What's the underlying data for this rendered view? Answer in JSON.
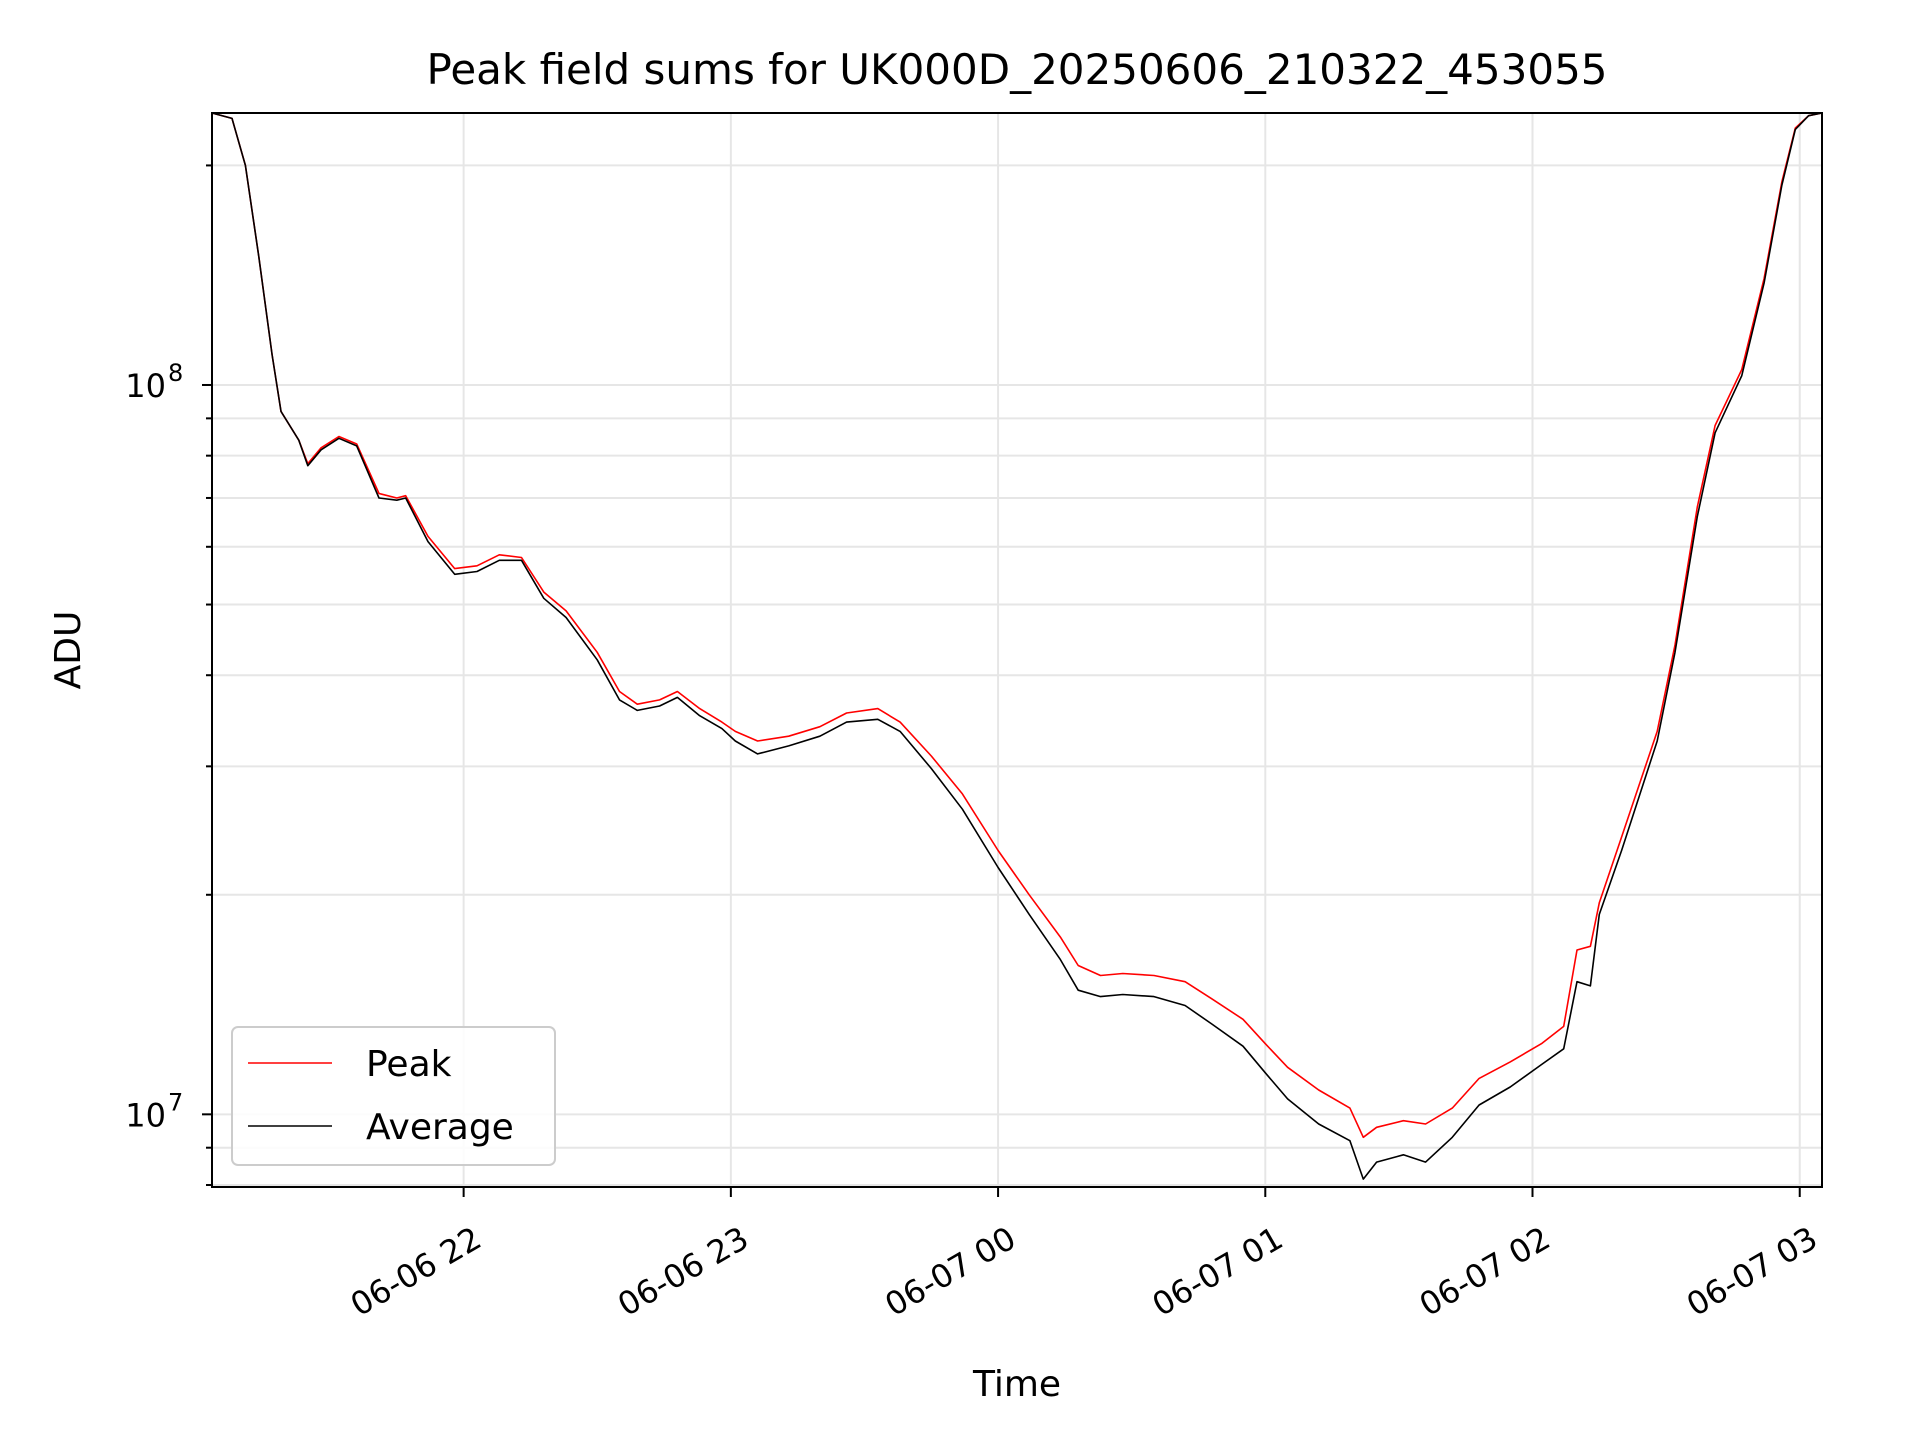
{
  "chart_data": {
    "type": "line",
    "title": "Peak field sums for UK000D_20250606_210322_453055",
    "xlabel": "Time",
    "ylabel": "ADU",
    "yscale": "log",
    "ylim": [
      7950000,
      236000000
    ],
    "xlim": [
      "2025-06-06 21:03:30",
      "2025-06-07 03:05:00"
    ],
    "grid": true,
    "legend_position": "lower-left",
    "x_ticks": [
      {
        "value": "2025-06-06 22:00",
        "label": "06-06 22"
      },
      {
        "value": "2025-06-06 23:00",
        "label": "06-06 23"
      },
      {
        "value": "2025-06-07 00:00",
        "label": "06-07 00"
      },
      {
        "value": "2025-06-07 01:00",
        "label": "06-07 01"
      },
      {
        "value": "2025-06-07 02:00",
        "label": "06-07 02"
      },
      {
        "value": "2025-06-07 03:00",
        "label": "06-07 03"
      }
    ],
    "y_ticks": [
      {
        "value": 10000000,
        "base": "10",
        "exp": "7"
      },
      {
        "value": 100000000,
        "base": "10",
        "exp": "8"
      }
    ],
    "series": [
      {
        "name": "Peak",
        "color": "#ff0000",
        "points": [
          [
            "2025-06-06 21:03:30",
            236000000
          ],
          [
            "2025-06-06 21:08",
            232000000
          ],
          [
            "2025-06-06 21:11",
            200000000
          ],
          [
            "2025-06-06 21:14",
            150000000
          ],
          [
            "2025-06-06 21:17",
            110000000
          ],
          [
            "2025-06-06 21:19",
            92000000
          ],
          [
            "2025-06-06 21:23",
            84000000
          ],
          [
            "2025-06-06 21:25",
            78000000
          ],
          [
            "2025-06-06 21:28",
            82000000
          ],
          [
            "2025-06-06 21:32",
            85000000
          ],
          [
            "2025-06-06 21:36",
            83000000
          ],
          [
            "2025-06-06 21:41",
            71000000
          ],
          [
            "2025-06-06 21:45",
            70000000
          ],
          [
            "2025-06-06 21:47",
            70500000
          ],
          [
            "2025-06-06 21:52",
            62000000
          ],
          [
            "2025-06-06 21:58",
            56000000
          ],
          [
            "2025-06-06 22:03",
            56500000
          ],
          [
            "2025-06-06 22:08",
            58500000
          ],
          [
            "2025-06-06 22:13",
            58000000
          ],
          [
            "2025-06-06 22:18",
            52000000
          ],
          [
            "2025-06-06 22:23",
            49000000
          ],
          [
            "2025-06-06 22:30",
            43000000
          ],
          [
            "2025-06-06 22:35",
            38000000
          ],
          [
            "2025-06-06 22:39",
            36500000
          ],
          [
            "2025-06-06 22:44",
            37000000
          ],
          [
            "2025-06-06 22:48",
            38000000
          ],
          [
            "2025-06-06 22:53",
            36000000
          ],
          [
            "2025-06-06 22:58",
            34500000
          ],
          [
            "2025-06-06 23:01",
            33500000
          ],
          [
            "2025-06-06 23:06",
            32500000
          ],
          [
            "2025-06-06 23:13",
            33000000
          ],
          [
            "2025-06-06 23:20",
            34000000
          ],
          [
            "2025-06-06 23:26",
            35500000
          ],
          [
            "2025-06-06 23:33",
            36000000
          ],
          [
            "2025-06-06 23:38",
            34500000
          ],
          [
            "2025-06-06 23:45",
            31000000
          ],
          [
            "2025-06-06 23:52",
            27500000
          ],
          [
            "2025-06-07 00:00",
            23000000
          ],
          [
            "2025-06-07 00:07",
            20000000
          ],
          [
            "2025-06-07 00:14",
            17500000
          ],
          [
            "2025-06-07 00:18",
            16000000
          ],
          [
            "2025-06-07 00:23",
            15500000
          ],
          [
            "2025-06-07 00:28",
            15600000
          ],
          [
            "2025-06-07 00:35",
            15500000
          ],
          [
            "2025-06-07 00:42",
            15200000
          ],
          [
            "2025-06-07 00:48",
            14400000
          ],
          [
            "2025-06-07 00:55",
            13500000
          ],
          [
            "2025-06-07 01:00",
            12500000
          ],
          [
            "2025-06-07 01:05",
            11600000
          ],
          [
            "2025-06-07 01:12",
            10800000
          ],
          [
            "2025-06-07 01:19",
            10200000
          ],
          [
            "2025-06-07 01:22",
            9300000
          ],
          [
            "2025-06-07 01:25",
            9600000
          ],
          [
            "2025-06-07 01:31",
            9800000
          ],
          [
            "2025-06-07 01:36",
            9700000
          ],
          [
            "2025-06-07 01:42",
            10200000
          ],
          [
            "2025-06-07 01:48",
            11200000
          ],
          [
            "2025-06-07 01:55",
            11800000
          ],
          [
            "2025-06-07 02:02",
            12500000
          ],
          [
            "2025-06-07 02:07",
            13200000
          ],
          [
            "2025-06-07 02:10",
            16800000
          ],
          [
            "2025-06-07 02:13",
            17000000
          ],
          [
            "2025-06-07 02:15",
            19500000
          ],
          [
            "2025-06-07 02:20",
            24000000
          ],
          [
            "2025-06-07 02:28",
            33500000
          ],
          [
            "2025-06-07 02:32",
            44000000
          ],
          [
            "2025-06-07 02:37",
            68000000
          ],
          [
            "2025-06-07 02:41",
            88000000
          ],
          [
            "2025-06-07 02:47",
            105000000
          ],
          [
            "2025-06-07 02:52",
            140000000
          ],
          [
            "2025-06-07 02:56",
            190000000
          ],
          [
            "2025-06-07 02:59",
            225000000
          ],
          [
            "2025-06-07 03:02",
            234000000
          ],
          [
            "2025-06-07 03:05",
            236000000
          ]
        ]
      },
      {
        "name": "Average",
        "color": "#000000",
        "points": [
          [
            "2025-06-06 21:03:30",
            236000000
          ],
          [
            "2025-06-06 21:08",
            232000000
          ],
          [
            "2025-06-06 21:11",
            200000000
          ],
          [
            "2025-06-06 21:14",
            150000000
          ],
          [
            "2025-06-06 21:17",
            110000000
          ],
          [
            "2025-06-06 21:19",
            92000000
          ],
          [
            "2025-06-06 21:23",
            84000000
          ],
          [
            "2025-06-06 21:25",
            77500000
          ],
          [
            "2025-06-06 21:28",
            81500000
          ],
          [
            "2025-06-06 21:32",
            84500000
          ],
          [
            "2025-06-06 21:36",
            82500000
          ],
          [
            "2025-06-06 21:41",
            70000000
          ],
          [
            "2025-06-06 21:45",
            69500000
          ],
          [
            "2025-06-06 21:47",
            70000000
          ],
          [
            "2025-06-06 21:52",
            61000000
          ],
          [
            "2025-06-06 21:58",
            55000000
          ],
          [
            "2025-06-06 22:03",
            55500000
          ],
          [
            "2025-06-06 22:08",
            57500000
          ],
          [
            "2025-06-06 22:13",
            57500000
          ],
          [
            "2025-06-06 22:18",
            51000000
          ],
          [
            "2025-06-06 22:23",
            48000000
          ],
          [
            "2025-06-06 22:30",
            42000000
          ],
          [
            "2025-06-06 22:35",
            37000000
          ],
          [
            "2025-06-06 22:39",
            35800000
          ],
          [
            "2025-06-06 22:44",
            36300000
          ],
          [
            "2025-06-06 22:48",
            37300000
          ],
          [
            "2025-06-06 22:53",
            35200000
          ],
          [
            "2025-06-06 22:58",
            33800000
          ],
          [
            "2025-06-06 23:01",
            32500000
          ],
          [
            "2025-06-06 23:06",
            31200000
          ],
          [
            "2025-06-06 23:13",
            32000000
          ],
          [
            "2025-06-06 23:20",
            33000000
          ],
          [
            "2025-06-06 23:26",
            34500000
          ],
          [
            "2025-06-06 23:33",
            34800000
          ],
          [
            "2025-06-06 23:38",
            33500000
          ],
          [
            "2025-06-06 23:45",
            29800000
          ],
          [
            "2025-06-06 23:52",
            26200000
          ],
          [
            "2025-06-07 00:00",
            21800000
          ],
          [
            "2025-06-07 00:07",
            18800000
          ],
          [
            "2025-06-07 00:14",
            16300000
          ],
          [
            "2025-06-07 00:18",
            14800000
          ],
          [
            "2025-06-07 00:23",
            14500000
          ],
          [
            "2025-06-07 00:28",
            14600000
          ],
          [
            "2025-06-07 00:35",
            14500000
          ],
          [
            "2025-06-07 00:42",
            14100000
          ],
          [
            "2025-06-07 00:48",
            13300000
          ],
          [
            "2025-06-07 00:55",
            12400000
          ],
          [
            "2025-06-07 01:00",
            11400000
          ],
          [
            "2025-06-07 01:05",
            10500000
          ],
          [
            "2025-06-07 01:12",
            9700000
          ],
          [
            "2025-06-07 01:19",
            9200000
          ],
          [
            "2025-06-07 01:22",
            8150000
          ],
          [
            "2025-06-07 01:25",
            8600000
          ],
          [
            "2025-06-07 01:31",
            8800000
          ],
          [
            "2025-06-07 01:36",
            8600000
          ],
          [
            "2025-06-07 01:42",
            9300000
          ],
          [
            "2025-06-07 01:48",
            10300000
          ],
          [
            "2025-06-07 01:55",
            10900000
          ],
          [
            "2025-06-07 02:02",
            11700000
          ],
          [
            "2025-06-07 02:07",
            12300000
          ],
          [
            "2025-06-07 02:10",
            15200000
          ],
          [
            "2025-06-07 02:13",
            15000000
          ],
          [
            "2025-06-07 02:15",
            18800000
          ],
          [
            "2025-06-07 02:20",
            23000000
          ],
          [
            "2025-06-07 02:28",
            32500000
          ],
          [
            "2025-06-07 02:32",
            43000000
          ],
          [
            "2025-06-07 02:37",
            66000000
          ],
          [
            "2025-06-07 02:41",
            86000000
          ],
          [
            "2025-06-07 02:47",
            103000000
          ],
          [
            "2025-06-07 02:52",
            138000000
          ],
          [
            "2025-06-07 02:56",
            188000000
          ],
          [
            "2025-06-07 02:59",
            224000000
          ],
          [
            "2025-06-07 03:02",
            234000000
          ],
          [
            "2025-06-07 03:05",
            236000000
          ]
        ]
      }
    ]
  }
}
